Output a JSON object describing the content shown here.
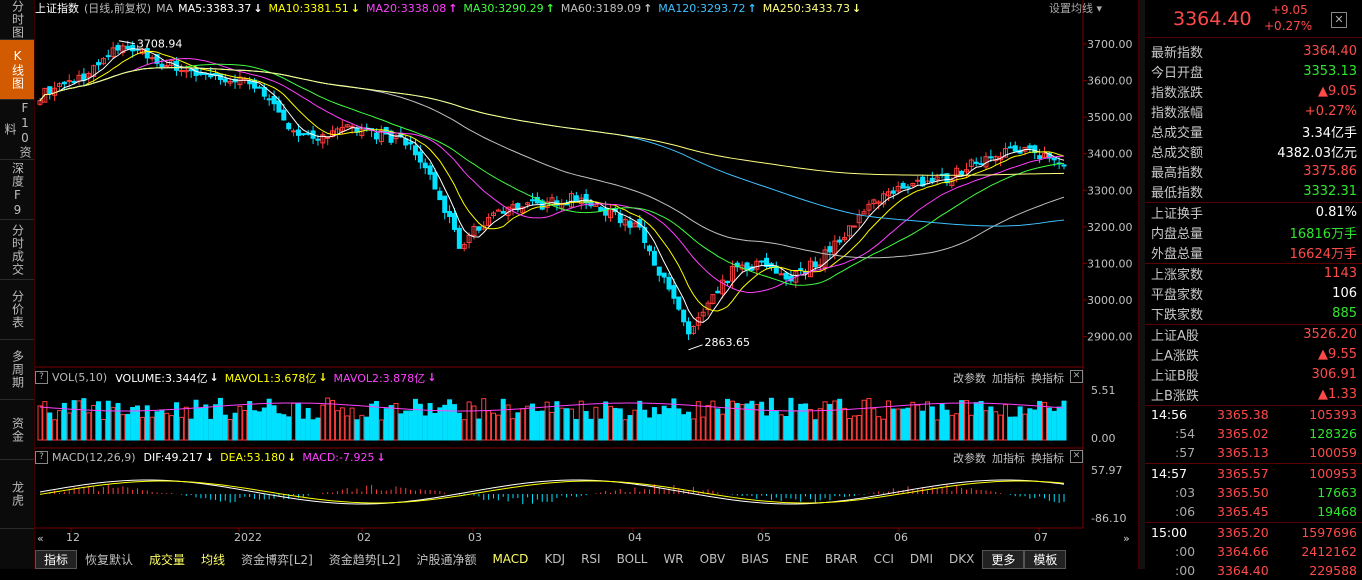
{
  "left_tabs": [
    "分时图",
    "K线图",
    "F10资料",
    "深度F9",
    "分时成交",
    "分价表",
    "多周期",
    "资金",
    "龙虎"
  ],
  "header": {
    "name": "上证指数",
    "sub": "(日线,前复权)",
    "ma_label": "MA",
    "ma": [
      {
        "label": "MA5:3383.37",
        "dir": "↓",
        "color": "#ffffff"
      },
      {
        "label": "MA10:3381.51",
        "dir": "↓",
        "color": "#ffff00"
      },
      {
        "label": "MA20:3338.08",
        "dir": "↑",
        "color": "#ff40ff"
      },
      {
        "label": "MA30:3290.29",
        "dir": "↑",
        "color": "#40ff40"
      },
      {
        "label": "MA60:3189.09",
        "dir": "↑",
        "color": "#c0c0c0"
      },
      {
        "label": "MA120:3293.72",
        "dir": "↑",
        "color": "#40c0ff"
      },
      {
        "label": "MA250:3433.73",
        "dir": "↓",
        "color": "#ffff80"
      }
    ],
    "settings": "设置均线 ▾"
  },
  "price_axis": [
    "3700.00",
    "3600.00",
    "3500.00",
    "3400.00",
    "3300.00",
    "3200.00",
    "3100.00",
    "3000.00",
    "2900.00"
  ],
  "annotations": {
    "high": "3708.94",
    "low": "2863.65"
  },
  "vol_panel": {
    "label": "VOL(5,10)",
    "volume": "VOLUME:3.344亿",
    "mavol1": "MAVOL1:3.678亿",
    "mavol2": "MAVOL2:3.878亿",
    "axis_top": "5.51",
    "axis_bottom": "0.00",
    "buttons": [
      "改参数",
      "加指标",
      "换指标"
    ]
  },
  "macd_panel": {
    "label": "MACD(12,26,9)",
    "dif": "DIF:49.217",
    "dea": "DEA:53.180",
    "macd": "MACD:-7.925",
    "axis_top": "57.97",
    "axis_bottom": "-86.10",
    "buttons": [
      "改参数",
      "加指标",
      "换指标"
    ]
  },
  "time_axis": [
    {
      "label": "12",
      "x": 36
    },
    {
      "label": "2022",
      "x": 204
    },
    {
      "label": "02",
      "x": 327
    },
    {
      "label": "03",
      "x": 438
    },
    {
      "label": "04",
      "x": 598
    },
    {
      "label": "05",
      "x": 727
    },
    {
      "label": "06",
      "x": 864
    },
    {
      "label": "07",
      "x": 1004
    }
  ],
  "bottom_tabs": [
    "指标",
    "恢复默认",
    "成交量",
    "均线",
    "资金博弈[L2]",
    "资金趋势[L2]",
    "沪股通净额",
    "MACD",
    "KDJ",
    "RSI",
    "BOLL",
    "WR",
    "OBV",
    "BIAS",
    "ENE",
    "BRAR",
    "CCI",
    "DMI",
    "DKX",
    "更多",
    "模板"
  ],
  "quote": {
    "price": "3364.40",
    "change": "+9.05",
    "pct": "+0.27%",
    "rows": [
      {
        "k": "最新指数",
        "v": "3364.40",
        "c": "red"
      },
      {
        "k": "今日开盘",
        "v": "3353.13",
        "c": "grn"
      },
      {
        "k": "指数涨跌",
        "v": "▲9.05",
        "c": "red"
      },
      {
        "k": "指数涨幅",
        "v": "+0.27%",
        "c": "red"
      },
      {
        "k": "总成交量",
        "v": "3.34亿手",
        "c": "wht"
      },
      {
        "k": "总成交额",
        "v": "4382.03亿元",
        "c": "wht"
      },
      {
        "k": "最高指数",
        "v": "3375.86",
        "c": "red"
      },
      {
        "k": "最低指数",
        "v": "3332.31",
        "c": "grn"
      }
    ],
    "rows2": [
      {
        "k": "上证换手",
        "v": "0.81%",
        "c": "wht"
      },
      {
        "k": "内盘总量",
        "v": "16816万手",
        "c": "grn"
      },
      {
        "k": "外盘总量",
        "v": "16624万手",
        "c": "red"
      }
    ],
    "rows3": [
      {
        "k": "上涨家数",
        "v": "1143",
        "c": "red"
      },
      {
        "k": "平盘家数",
        "v": "106",
        "c": "wht"
      },
      {
        "k": "下跌家数",
        "v": "885",
        "c": "grn"
      }
    ],
    "rows4": [
      {
        "k": "上证A股",
        "v": "3526.20",
        "c": "red"
      },
      {
        "k": "上A涨跌",
        "v": "▲9.55",
        "c": "red"
      },
      {
        "k": "上证B股",
        "v": "306.91",
        "c": "red"
      },
      {
        "k": "上B涨跌",
        "v": "▲1.33",
        "c": "red"
      }
    ],
    "ticks": [
      {
        "t": "14:56",
        "p": "3365.38",
        "v": "105393",
        "vc": "red",
        "tc": "wht"
      },
      {
        "t": ":54",
        "p": "3365.02",
        "v": "128326",
        "vc": "grn",
        "tc": "gry"
      },
      {
        "t": ":57",
        "p": "3365.13",
        "v": "100059",
        "vc": "red",
        "tc": "gry"
      },
      {
        "t": "14:57",
        "p": "3365.57",
        "v": "100953",
        "vc": "red",
        "tc": "wht"
      },
      {
        "t": ":03",
        "p": "3365.50",
        "v": "17663",
        "vc": "grn",
        "tc": "gry"
      },
      {
        "t": ":06",
        "p": "3365.45",
        "v": "19468",
        "vc": "grn",
        "tc": "gry"
      },
      {
        "t": "15:00",
        "p": "3365.20",
        "v": "1597696",
        "vc": "red",
        "tc": "wht"
      },
      {
        "t": ":00",
        "p": "3364.66",
        "v": "2412162",
        "vc": "red",
        "tc": "gry"
      },
      {
        "t": ":00",
        "p": "3364.40",
        "v": "229588",
        "vc": "red",
        "tc": "gry"
      }
    ]
  }
}
